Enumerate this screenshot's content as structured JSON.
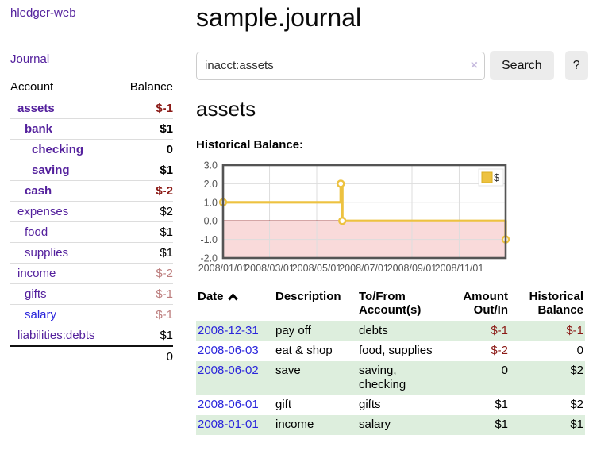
{
  "colors": {
    "link_visited_purple": "#54219d",
    "link_blue": "#2a25db",
    "negative_dark_red": "#8b1a16",
    "negative_muted_red": "#bd7e7e",
    "row_stripe_green": "#ddeedd",
    "chart_line_gold": "#edc240",
    "chart_negative_fill": "#f9dada",
    "chart_zero_line": "#8b1111",
    "chart_border": "#545454",
    "chart_grid": "#dddddd",
    "button_bg": "#ececec"
  },
  "sidebar": {
    "brand": "hledger-web",
    "journal_label": "Journal",
    "table": {
      "header_account": "Account",
      "header_balance": "Balance",
      "accounts": [
        {
          "name": "assets",
          "indent": 1,
          "bold": true,
          "balance": "$-1"
        },
        {
          "name": "bank",
          "indent": 2,
          "bold": true,
          "balance": "$1"
        },
        {
          "name": "checking",
          "indent": 3,
          "bold": true,
          "balance": "0"
        },
        {
          "name": "saving",
          "indent": 3,
          "bold": true,
          "balance": "$1"
        },
        {
          "name": "cash",
          "indent": 2,
          "bold": true,
          "balance": "$-2"
        },
        {
          "name": "expenses",
          "indent": 1,
          "bold": false,
          "balance": "$2"
        },
        {
          "name": "food",
          "indent": 2,
          "bold": false,
          "balance": "$1"
        },
        {
          "name": "supplies",
          "indent": 2,
          "bold": false,
          "balance": "$1"
        },
        {
          "name": "income",
          "indent": 1,
          "bold": false,
          "balance": "$-2"
        },
        {
          "name": "gifts",
          "indent": 2,
          "bold": false,
          "balance": "$-1"
        },
        {
          "name": "salary",
          "indent": 2,
          "bold": false,
          "balance": "$-1",
          "unvisited": true
        },
        {
          "name": "liabilities:debts",
          "indent": 1,
          "bold": false,
          "balance": "$1"
        }
      ],
      "total": "0"
    }
  },
  "header": {
    "title": "sample.journal"
  },
  "search": {
    "query": "inacct:assets",
    "clear_icon": "×",
    "button_label": "Search",
    "help_label": "?"
  },
  "account_page": {
    "heading": "assets",
    "chart_title": "Historical Balance:"
  },
  "chart_data": {
    "type": "line",
    "style": "step-after",
    "title": "Historical Balance",
    "legend": "$",
    "legend_position": "top-right",
    "grid": true,
    "x_range": [
      "2008-01-01",
      "2008-12-31"
    ],
    "x_ticks": [
      "2008/01/01",
      "2008/03/01",
      "2008/05/01",
      "2008/07/01",
      "2008/09/01",
      "2008/11/01"
    ],
    "y_ticks": [
      3.0,
      2.0,
      1.0,
      0.0,
      -1.0,
      -2.0
    ],
    "ylim": [
      -2,
      3
    ],
    "series": [
      {
        "name": "$",
        "points": [
          {
            "date": "2008-01-01",
            "value": 1
          },
          {
            "date": "2008-06-01",
            "value": 2
          },
          {
            "date": "2008-06-03",
            "value": 0
          },
          {
            "date": "2008-12-31",
            "value": -1
          }
        ]
      }
    ],
    "negative_region_shaded": true
  },
  "register": {
    "headers": {
      "date": "Date",
      "description": "Description",
      "account": "To/From Account(s)",
      "amount": "Amount Out/In",
      "balance": "Historical Balance"
    },
    "rows": [
      {
        "date": "2008-12-31",
        "description": "pay off",
        "accounts": "debts",
        "amount": "$-1",
        "balance": "$-1",
        "shaded": true
      },
      {
        "date": "2008-06-03",
        "description": "eat & shop",
        "accounts": "food, supplies",
        "amount": "$-2",
        "balance": "0",
        "shaded": false
      },
      {
        "date": "2008-06-02",
        "description": "save",
        "accounts": "saving, checking",
        "amount": "0",
        "balance": "$2",
        "shaded": true
      },
      {
        "date": "2008-06-01",
        "description": "gift",
        "accounts": "gifts",
        "amount": "$1",
        "balance": "$2",
        "shaded": false
      },
      {
        "date": "2008-01-01",
        "description": "income",
        "accounts": "salary",
        "amount": "$1",
        "balance": "$1",
        "shaded": true
      }
    ]
  }
}
